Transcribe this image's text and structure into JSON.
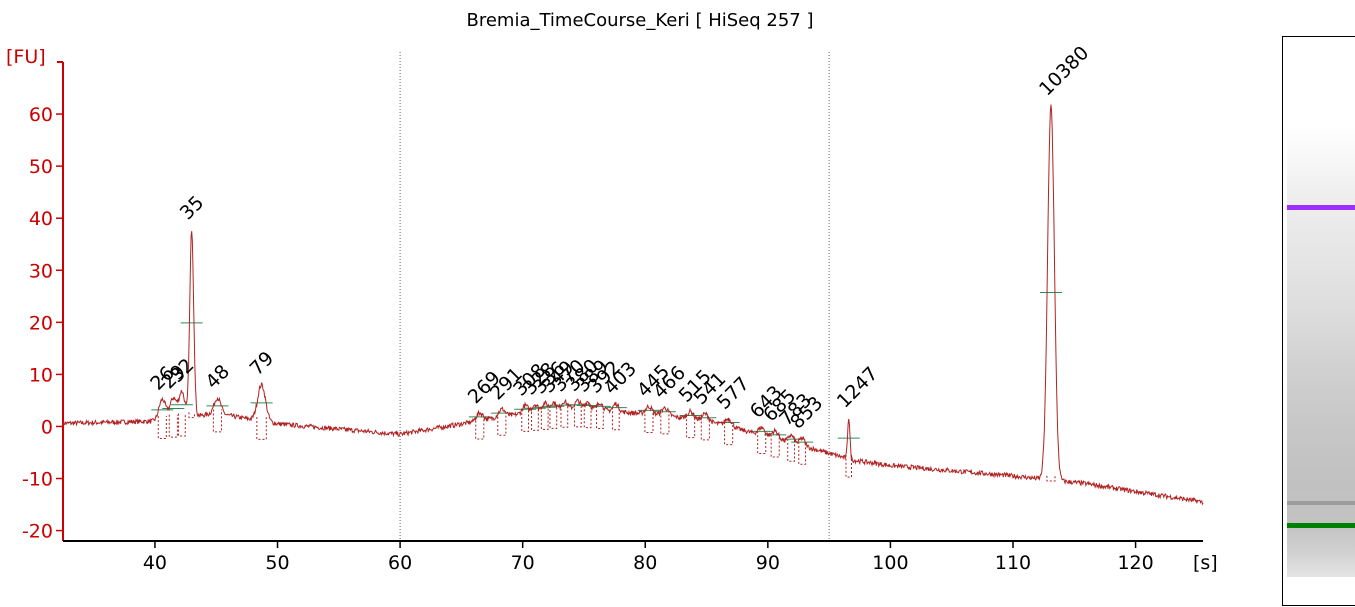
{
  "chart_data": {
    "type": "line",
    "title": "Bremia_TimeCourse_Keri  [ HiSeq 257 ]",
    "ylabel": "[FU]",
    "xlabel": "[s]",
    "xlim": [
      32.5,
      125.5
    ],
    "ylim": [
      -22,
      70
    ],
    "x_ticks": [
      40,
      50,
      60,
      70,
      80,
      90,
      100,
      110,
      120
    ],
    "y_ticks": [
      -20,
      -10,
      0,
      10,
      20,
      30,
      40,
      50,
      60
    ],
    "grid": false,
    "region_markers_x": [
      60,
      95
    ],
    "colors": {
      "axis_y": "#cc0000",
      "trace": "#b22222",
      "lower_marker": "#008000",
      "upper_marker": "#9b30ff"
    },
    "baseline": [
      [
        32.5,
        0.6
      ],
      [
        40,
        1
      ],
      [
        45,
        2.5
      ],
      [
        50,
        0.5
      ],
      [
        55,
        -0.5
      ],
      [
        60,
        -1.5
      ],
      [
        65,
        0.5
      ],
      [
        70,
        2.5
      ],
      [
        74,
        3.5
      ],
      [
        78,
        2.8
      ],
      [
        82,
        2
      ],
      [
        86,
        0.5
      ],
      [
        90,
        -2
      ],
      [
        94,
        -4.5
      ],
      [
        97,
        -6.5
      ],
      [
        100,
        -7.5
      ],
      [
        105,
        -8.5
      ],
      [
        110,
        -9.5
      ],
      [
        112,
        -10
      ],
      [
        116,
        -11
      ],
      [
        120,
        -12.5
      ],
      [
        125.5,
        -14.5
      ]
    ],
    "peaks": [
      {
        "label": "26",
        "x": 40.6,
        "height": 4,
        "width": 0.6,
        "label_color": "#000000"
      },
      {
        "label": "29",
        "x": 41.5,
        "height": 4,
        "width": 0.6,
        "label_color": "#000000"
      },
      {
        "label": "32",
        "x": 42.2,
        "height": 5,
        "width": 0.5,
        "label_color": "#000000"
      },
      {
        "label": "35",
        "x": 43.0,
        "height": 36,
        "width": 0.35,
        "label_color": "#008000",
        "role": "lower_marker"
      },
      {
        "label": "48",
        "x": 45.1,
        "height": 3,
        "width": 0.6,
        "label_color": "#000000"
      },
      {
        "label": "79",
        "x": 48.7,
        "height": 7,
        "width": 0.7,
        "label_color": "#000000"
      },
      {
        "label": "269",
        "x": 66.5,
        "height": 1.5,
        "width": 0.6,
        "label_color": "#000000"
      },
      {
        "label": "291",
        "x": 68.3,
        "height": 1.5,
        "width": 0.6,
        "label_color": "#000000"
      },
      {
        "label": "308",
        "x": 70.2,
        "height": 1.5,
        "width": 0.5,
        "label_color": "#000000"
      },
      {
        "label": "328",
        "x": 71.0,
        "height": 1.5,
        "width": 0.5,
        "label_color": "#000000"
      },
      {
        "label": "336",
        "x": 71.8,
        "height": 1.5,
        "width": 0.5,
        "label_color": "#000000"
      },
      {
        "label": "349",
        "x": 72.5,
        "height": 1.5,
        "width": 0.5,
        "label_color": "#000000"
      },
      {
        "label": "370",
        "x": 73.4,
        "height": 1.5,
        "width": 0.5,
        "label_color": "#000000"
      },
      {
        "label": "380",
        "x": 74.5,
        "height": 1.5,
        "width": 0.5,
        "label_color": "#000000"
      },
      {
        "label": "389",
        "x": 75.3,
        "height": 1.5,
        "width": 0.5,
        "label_color": "#000000"
      },
      {
        "label": "392",
        "x": 76.3,
        "height": 1.5,
        "width": 0.5,
        "label_color": "#000000"
      },
      {
        "label": "403",
        "x": 77.6,
        "height": 1.5,
        "width": 0.5,
        "label_color": "#000000"
      },
      {
        "label": "445",
        "x": 80.3,
        "height": 1.5,
        "width": 0.6,
        "label_color": "#000000"
      },
      {
        "label": "466",
        "x": 81.6,
        "height": 1.5,
        "width": 0.6,
        "label_color": "#000000"
      },
      {
        "label": "515",
        "x": 83.7,
        "height": 1.5,
        "width": 0.6,
        "label_color": "#000000"
      },
      {
        "label": "541",
        "x": 84.9,
        "height": 1.5,
        "width": 0.6,
        "label_color": "#000000"
      },
      {
        "label": "577",
        "x": 86.8,
        "height": 1.5,
        "width": 0.6,
        "label_color": "#000000"
      },
      {
        "label": "643",
        "x": 89.5,
        "height": 1.5,
        "width": 0.6,
        "label_color": "#000000"
      },
      {
        "label": "685",
        "x": 90.6,
        "height": 1.5,
        "width": 0.6,
        "label_color": "#000000"
      },
      {
        "label": "783",
        "x": 91.9,
        "height": 1.5,
        "width": 0.5,
        "label_color": "#000000"
      },
      {
        "label": "853",
        "x": 92.8,
        "height": 1.5,
        "width": 0.5,
        "label_color": "#000000"
      },
      {
        "label": "1247",
        "x": 96.6,
        "height": 8,
        "width": 0.2,
        "label_color": "#000000"
      },
      {
        "label": "10380",
        "x": 113.1,
        "height": 72,
        "width": 0.6,
        "label_color": "#9b30ff",
        "role": "upper_marker"
      }
    ],
    "gel": {
      "lower_band_color": "#008000",
      "upper_band_color": "#9b30ff"
    }
  }
}
